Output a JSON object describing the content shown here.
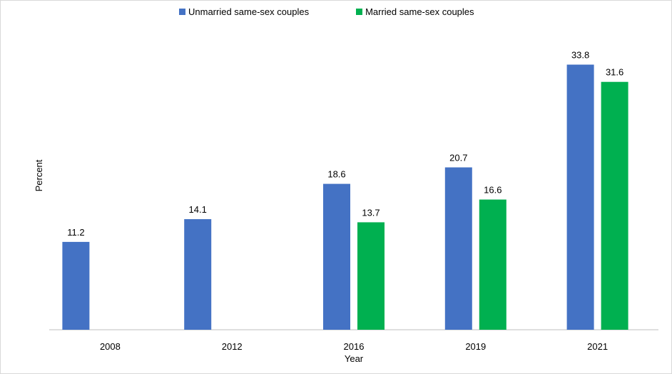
{
  "chart_data": {
    "type": "bar",
    "title": "",
    "xlabel": "Year",
    "ylabel": "Percent",
    "categories": [
      "2008",
      "2012",
      "2016",
      "2019",
      "2021"
    ],
    "series": [
      {
        "name": "Unmarried same-sex couples",
        "color": "#4472C4",
        "values": [
          11.2,
          14.1,
          18.6,
          20.7,
          33.8
        ]
      },
      {
        "name": "Married same-sex couples",
        "color": "#00B050",
        "values": [
          null,
          null,
          13.7,
          16.6,
          31.6
        ]
      }
    ],
    "ylim": [
      0,
      36
    ],
    "grid": false,
    "legend_position": "top"
  }
}
